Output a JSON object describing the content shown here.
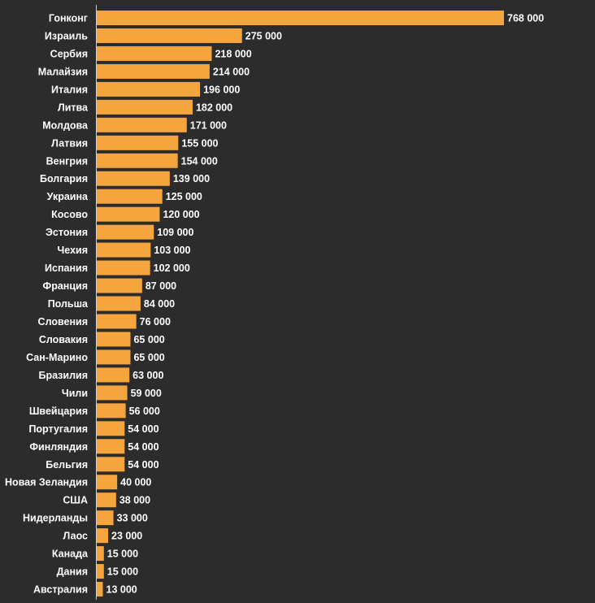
{
  "colors": {
    "background": "#2c2c2c",
    "bar": "#f5a53e",
    "text": "#ffffff",
    "axis": "#cfcfcf"
  },
  "chart_data": {
    "type": "bar",
    "orientation": "horizontal",
    "title": "",
    "xlabel": "",
    "ylabel": "",
    "grid": false,
    "legend": "none",
    "xlim": [
      0,
      768000
    ],
    "categories": [
      "Гонконг",
      "Израиль",
      "Сербия",
      "Малайзия",
      "Италия",
      "Литва",
      "Молдова",
      "Латвия",
      "Венгрия",
      "Болгария",
      "Украина",
      "Косово",
      "Эстония",
      "Чехия",
      "Испания",
      "Франция",
      "Польша",
      "Словения",
      "Словакия",
      "Сан-Марино",
      "Бразилия",
      "Чили",
      "Швейцария",
      "Португалия",
      "Финляндия",
      "Бельгия",
      "Новая Зеландия",
      "США",
      "Нидерланды",
      "Лаос",
      "Канада",
      "Дания",
      "Австралия"
    ],
    "values": [
      768000,
      275000,
      218000,
      214000,
      196000,
      182000,
      171000,
      155000,
      154000,
      139000,
      125000,
      120000,
      109000,
      103000,
      102000,
      87000,
      84000,
      76000,
      65000,
      65000,
      63000,
      59000,
      56000,
      54000,
      54000,
      54000,
      40000,
      38000,
      33000,
      23000,
      15000,
      15000,
      13000
    ],
    "value_labels": [
      "768 000",
      "275 000",
      "218 000",
      "214 000",
      "196 000",
      "182 000",
      "171 000",
      "155 000",
      "154 000",
      "139 000",
      "125 000",
      "120 000",
      "109 000",
      "103 000",
      "102 000",
      "87 000",
      "84 000",
      "76 000",
      "65 000",
      "65 000",
      "63 000",
      "59 000",
      "56 000",
      "54 000",
      "54 000",
      "54 000",
      "40 000",
      "38 000",
      "33 000",
      "23 000",
      "15 000",
      "15 000",
      "13 000"
    ]
  }
}
